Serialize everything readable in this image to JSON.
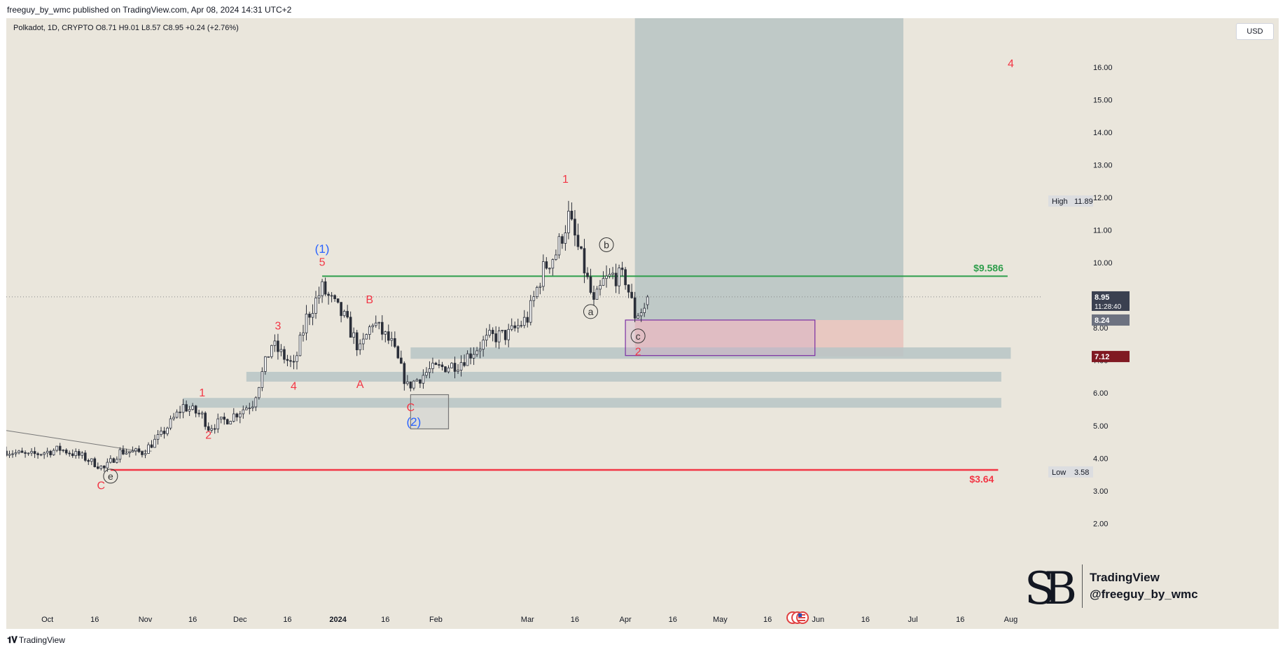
{
  "header": {
    "published": "freeguy_by_wmc published on TradingView.com, Apr 08, 2024 14:31 UTC+2"
  },
  "legend": {
    "text": "Polkadot, 1D, CRYPTO  O8.71  H9.01  L8.57  C8.95  +0.24 (+2.76%)"
  },
  "currency": "USD",
  "footer": {
    "brand": "TradingView",
    "logo_icon": "tradingview-logo-icon"
  },
  "watermark": {
    "brand": "TradingView",
    "handle": "@freeguy_by_wmc",
    "logo_icon": "sb-monogram-icon"
  },
  "colors": {
    "up": "#089981",
    "down": "#f23645",
    "bg": "#eae6dc",
    "zone": "#b7c4c6",
    "target": "#2e9e4b",
    "stop": "#f23645",
    "wave_red": "#f23645",
    "wave_blue": "#2962ff"
  },
  "chart_data": {
    "type": "candlestick",
    "y_axis": {
      "min": 1.6,
      "max": 17.5,
      "ticks": [
        "2.00",
        "3.00",
        "4.00",
        "5.00",
        "6.00",
        "7.00",
        "8.00",
        "9.00",
        "10.00",
        "11.00",
        "12.00",
        "13.00",
        "14.00",
        "15.00",
        "16.00"
      ]
    },
    "x_axis": {
      "range": [
        "2023-09-18",
        "2024-08-10"
      ],
      "ticks": [
        {
          "date": "2023-10-01",
          "label": "Oct",
          "bold": false
        },
        {
          "date": "2023-10-16",
          "label": "16",
          "bold": false
        },
        {
          "date": "2023-11-01",
          "label": "Nov",
          "bold": false
        },
        {
          "date": "2023-11-16",
          "label": "16",
          "bold": false
        },
        {
          "date": "2023-12-01",
          "label": "Dec",
          "bold": false
        },
        {
          "date": "2023-12-16",
          "label": "16",
          "bold": false
        },
        {
          "date": "2024-01-01",
          "label": "2024",
          "bold": true
        },
        {
          "date": "2024-01-16",
          "label": "16",
          "bold": false
        },
        {
          "date": "2024-02-01",
          "label": "Feb",
          "bold": false
        },
        {
          "date": "2024-03-01",
          "label": "Mar",
          "bold": false
        },
        {
          "date": "2024-03-16",
          "label": "16",
          "bold": false
        },
        {
          "date": "2024-04-01",
          "label": "Apr",
          "bold": false
        },
        {
          "date": "2024-04-16",
          "label": "16",
          "bold": false
        },
        {
          "date": "2024-05-01",
          "label": "May",
          "bold": false
        },
        {
          "date": "2024-05-16",
          "label": "16",
          "bold": false
        },
        {
          "date": "2024-06-01",
          "label": "Jun",
          "bold": false
        },
        {
          "date": "2024-06-16",
          "label": "16",
          "bold": false
        },
        {
          "date": "2024-07-01",
          "label": "Jul",
          "bold": false
        },
        {
          "date": "2024-07-16",
          "label": "16",
          "bold": false
        },
        {
          "date": "2024-08-01",
          "label": "Aug",
          "bold": false
        }
      ]
    },
    "candles": {
      "start": "2023-09-18",
      "end": "2024-04-08",
      "anchors": [
        [
          "2023-09-18",
          4.22
        ],
        [
          "2023-09-25",
          4.08
        ],
        [
          "2023-10-05",
          4.28
        ],
        [
          "2023-10-12",
          4.05
        ],
        [
          "2023-10-19",
          3.68
        ],
        [
          "2023-10-24",
          4.2
        ],
        [
          "2023-10-31",
          4.18
        ],
        [
          "2023-11-06",
          4.7
        ],
        [
          "2023-11-13",
          5.6
        ],
        [
          "2023-11-19",
          5.3
        ],
        [
          "2023-11-21",
          4.95
        ],
        [
          "2023-11-27",
          5.2
        ],
        [
          "2023-12-05",
          5.7
        ],
        [
          "2023-12-11",
          7.5
        ],
        [
          "2023-12-18",
          6.8
        ],
        [
          "2023-12-22",
          8.3
        ],
        [
          "2023-12-27",
          9.2
        ],
        [
          "2024-01-03",
          8.3
        ],
        [
          "2024-01-08",
          7.3
        ],
        [
          "2024-01-12",
          8.2
        ],
        [
          "2024-01-18",
          7.5
        ],
        [
          "2024-01-23",
          6.2
        ],
        [
          "2024-01-30",
          6.7
        ],
        [
          "2024-02-08",
          6.9
        ],
        [
          "2024-02-18",
          7.7
        ],
        [
          "2024-02-24",
          7.8
        ],
        [
          "2024-03-01",
          8.3
        ],
        [
          "2024-03-06",
          9.8
        ],
        [
          "2024-03-10",
          10.3
        ],
        [
          "2024-03-14",
          11.4
        ],
        [
          "2024-03-19",
          9.8
        ],
        [
          "2024-03-22",
          8.7
        ],
        [
          "2024-03-25",
          9.4
        ],
        [
          "2024-03-28",
          9.6
        ],
        [
          "2024-04-01",
          9.5
        ],
        [
          "2024-04-04",
          8.4
        ],
        [
          "2024-04-07",
          8.6
        ],
        [
          "2024-04-08",
          8.95
        ]
      ],
      "last": {
        "open": 8.71,
        "high": 9.01,
        "low": 8.57,
        "close": 8.95
      }
    },
    "levels": [
      {
        "name": "target",
        "price": 9.586,
        "from": "2023-12-27",
        "to": "2024-07-31",
        "label": "$9.586"
      },
      {
        "name": "stop",
        "price": 3.64,
        "from": "2023-10-21",
        "to": "2024-07-28",
        "label": "$3.64"
      }
    ],
    "zones": [
      {
        "name": "resistance-zone-1",
        "low": 7.05,
        "high": 7.4,
        "from": "2024-01-24",
        "to": "2024-08-01"
      },
      {
        "name": "support-zone-2",
        "low": 6.35,
        "high": 6.65,
        "from": "2023-12-03",
        "to": "2024-07-29"
      },
      {
        "name": "support-zone-3",
        "low": 5.55,
        "high": 5.85,
        "from": "2023-11-13",
        "to": "2024-07-29"
      }
    ],
    "position": {
      "entry": 8.24,
      "target": 17.5,
      "stop": 7.12,
      "from": "2024-04-04",
      "to": "2024-06-28"
    },
    "rectangles": [
      {
        "name": "correction-box",
        "low": 4.9,
        "high": 5.95,
        "from": "2024-01-24",
        "to": "2024-02-05"
      },
      {
        "name": "wave-2-box",
        "low": 7.15,
        "high": 8.24,
        "from": "2024-04-01",
        "to": "2024-05-31"
      }
    ],
    "trendlines": [
      {
        "name": "descending-trendline",
        "x1": "2023-09-18",
        "y1": 4.85,
        "x2": "2023-10-30",
        "y2": 4.22
      },
      {
        "name": "breakout-line",
        "x1": "2023-10-24",
        "y1": 4.22,
        "x2": "2023-11-03",
        "y2": 4.22
      }
    ],
    "wave_labels": [
      {
        "text": "(1)",
        "date": "2023-12-27",
        "price": 10.3,
        "color": "blue"
      },
      {
        "text": "5",
        "date": "2023-12-27",
        "price": 9.9,
        "color": "red"
      },
      {
        "text": "3",
        "date": "2023-12-13",
        "price": 7.95,
        "color": "red"
      },
      {
        "text": "4",
        "date": "2023-12-18",
        "price": 6.1,
        "color": "red"
      },
      {
        "text": "1",
        "date": "2023-11-19",
        "price": 5.9,
        "color": "red"
      },
      {
        "text": "2",
        "date": "2023-11-21",
        "price": 4.6,
        "color": "red"
      },
      {
        "text": "B",
        "date": "2024-01-11",
        "price": 8.75,
        "color": "red"
      },
      {
        "text": "A",
        "date": "2024-01-08",
        "price": 6.15,
        "color": "red"
      },
      {
        "text": "C",
        "date": "2024-01-24",
        "price": 5.45,
        "color": "red"
      },
      {
        "text": "(2)",
        "date": "2024-01-25",
        "price": 5.0,
        "color": "blue"
      },
      {
        "text": "C",
        "date": "2023-10-18",
        "price": 3.05,
        "color": "red"
      },
      {
        "text": "1",
        "date": "2024-03-13",
        "price": 12.45,
        "color": "red"
      },
      {
        "text": "2",
        "date": "2024-04-05",
        "price": 7.15,
        "color": "red"
      },
      {
        "text": "4",
        "date": "2024-08-01",
        "price": 16.0,
        "color": "red"
      }
    ],
    "circled_labels": [
      {
        "text": "e",
        "date": "2023-10-21",
        "price": 3.45
      },
      {
        "text": "a",
        "date": "2024-03-21",
        "price": 8.5
      },
      {
        "text": "b",
        "date": "2024-03-26",
        "price": 10.55
      },
      {
        "text": "c",
        "date": "2024-04-05",
        "price": 7.75
      }
    ],
    "axis_labels": [
      {
        "name": "high-label",
        "tag": "High",
        "value": "11.89",
        "price": 11.89
      },
      {
        "name": "price-label",
        "value": "8.95",
        "sub": "11:28:40",
        "price": 8.95
      },
      {
        "name": "entry-label",
        "value": "8.24",
        "price": 8.24
      },
      {
        "name": "stop-label",
        "value": "7.12",
        "price": 7.12
      },
      {
        "name": "low-label",
        "tag": "Low",
        "value": "3.58",
        "price": 3.58
      }
    ]
  }
}
